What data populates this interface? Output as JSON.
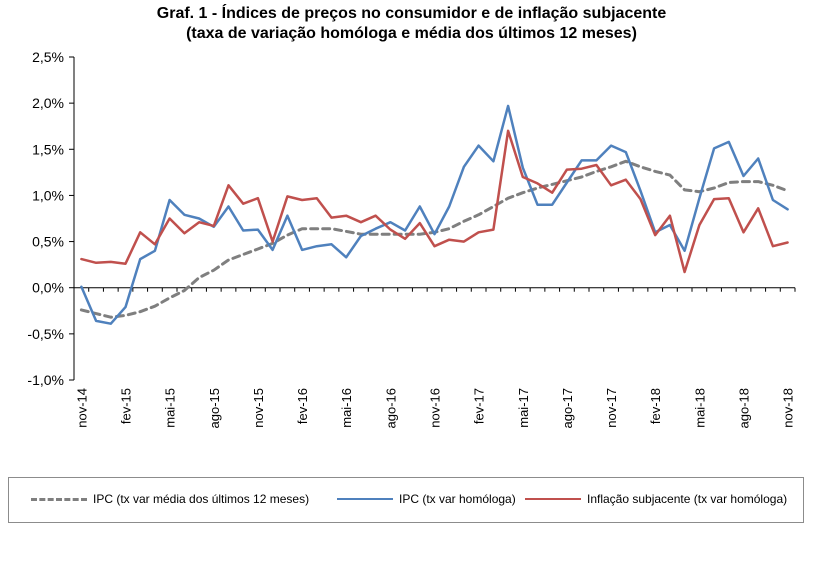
{
  "chart_data": {
    "type": "line",
    "title": "Graf. 1 - Índices de preços no consumidor e de inflação subjacente",
    "subtitle": "(taxa de variação homóloga e média dos últimos 12 meses)",
    "xlabel": "",
    "ylabel": "",
    "ylim": [
      -1.0,
      2.5
    ],
    "y_ticks": [
      "2,5%",
      "2,0%",
      "1,5%",
      "1,0%",
      "0,5%",
      "0,0%",
      "-0,5%",
      "-1,0%"
    ],
    "y_tick_values": [
      2.5,
      2.0,
      1.5,
      1.0,
      0.5,
      0.0,
      -0.5,
      -1.0
    ],
    "grid": false,
    "legend_position": "bottom",
    "x": [
      "nov-14",
      "dez-14",
      "jan-15",
      "fev-15",
      "mar-15",
      "abr-15",
      "mai-15",
      "jun-15",
      "jul-15",
      "ago-15",
      "set-15",
      "out-15",
      "nov-15",
      "dez-15",
      "jan-16",
      "fev-16",
      "mar-16",
      "abr-16",
      "mai-16",
      "jun-16",
      "jul-16",
      "ago-16",
      "set-16",
      "out-16",
      "nov-16",
      "dez-16",
      "jan-17",
      "fev-17",
      "mar-17",
      "abr-17",
      "mai-17",
      "jun-17",
      "jul-17",
      "ago-17",
      "set-17",
      "out-17",
      "nov-17",
      "dez-17",
      "jan-18",
      "fev-18",
      "mar-18",
      "abr-18",
      "mai-18",
      "jun-18",
      "jul-18",
      "ago-18",
      "set-18",
      "out-18",
      "nov-18"
    ],
    "x_tick_labels": [
      "nov-14",
      "fev-15",
      "mai-15",
      "ago-15",
      "nov-15",
      "fev-16",
      "mai-16",
      "ago-16",
      "nov-16",
      "fev-17",
      "mai-17",
      "ago-17",
      "nov-17",
      "fev-18",
      "mai-18",
      "ago-18",
      "nov-18"
    ],
    "series": [
      {
        "name": "IPC (tx var média dos últimos 12 meses)",
        "color": "#7f7f7f",
        "style": "dashed",
        "values": [
          -0.24,
          -0.28,
          -0.32,
          -0.3,
          -0.26,
          -0.2,
          -0.11,
          -0.03,
          0.11,
          0.19,
          0.3,
          0.36,
          0.42,
          0.48,
          0.57,
          0.64,
          0.64,
          0.64,
          0.61,
          0.58,
          0.58,
          0.58,
          0.58,
          0.58,
          0.6,
          0.64,
          0.72,
          0.79,
          0.88,
          0.97,
          1.03,
          1.08,
          1.12,
          1.16,
          1.2,
          1.26,
          1.31,
          1.37,
          1.31,
          1.26,
          1.22,
          1.06,
          1.04,
          1.08,
          1.14,
          1.15,
          1.15,
          1.11,
          1.05
        ]
      },
      {
        "name": "IPC (tx var homóloga)",
        "color": "#4f81bd",
        "style": "solid",
        "values": [
          0.01,
          -0.36,
          -0.39,
          -0.21,
          0.31,
          0.4,
          0.95,
          0.79,
          0.75,
          0.66,
          0.88,
          0.62,
          0.63,
          0.41,
          0.78,
          0.41,
          0.45,
          0.47,
          0.33,
          0.56,
          0.64,
          0.71,
          0.62,
          0.88,
          0.58,
          0.88,
          1.31,
          1.54,
          1.37,
          1.97,
          1.3,
          0.9,
          0.9,
          1.14,
          1.38,
          1.38,
          1.54,
          1.47,
          1.05,
          0.6,
          0.68,
          0.4,
          0.97,
          1.51,
          1.58,
          1.21,
          1.4,
          0.95,
          0.85
        ]
      },
      {
        "name": "Inflação subjacente (tx var homóloga)",
        "color": "#c0504d",
        "style": "solid",
        "values": [
          0.31,
          0.27,
          0.28,
          0.26,
          0.6,
          0.47,
          0.75,
          0.59,
          0.71,
          0.67,
          1.11,
          0.91,
          0.97,
          0.5,
          0.99,
          0.95,
          0.97,
          0.76,
          0.78,
          0.71,
          0.78,
          0.63,
          0.53,
          0.7,
          0.45,
          0.52,
          0.5,
          0.6,
          0.63,
          1.7,
          1.2,
          1.13,
          1.03,
          1.28,
          1.29,
          1.33,
          1.11,
          1.17,
          0.96,
          0.57,
          0.78,
          0.17,
          0.68,
          0.96,
          0.97,
          0.6,
          0.86,
          0.45,
          0.49
        ]
      }
    ]
  }
}
